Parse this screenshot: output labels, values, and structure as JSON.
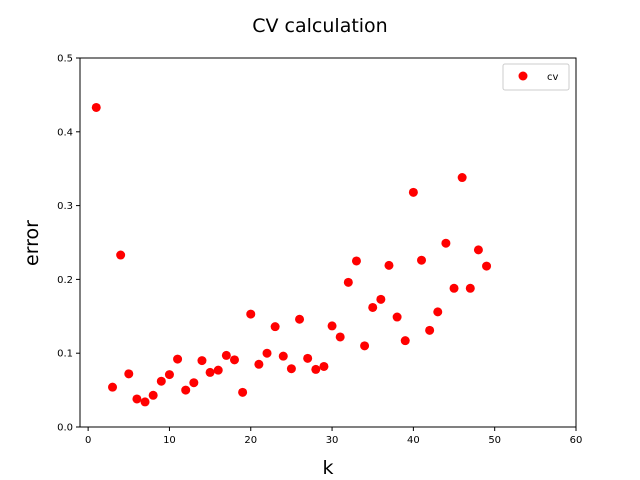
{
  "chart_data": {
    "type": "scatter",
    "title": "CV calculation",
    "xlabel": "k",
    "ylabel": "error",
    "xlim": [
      -1,
      60
    ],
    "ylim": [
      0.0,
      0.5
    ],
    "xticks": [
      0,
      10,
      20,
      30,
      40,
      50,
      60
    ],
    "yticks": [
      0.0,
      0.1,
      0.2,
      0.3,
      0.4,
      0.5
    ],
    "xtick_labels": [
      "0",
      "10",
      "20",
      "30",
      "40",
      "50",
      "60"
    ],
    "ytick_labels": [
      "0.0",
      "0.1",
      "0.2",
      "0.3",
      "0.4",
      "0.5"
    ],
    "grid": false,
    "legend_position": "top-right",
    "series": [
      {
        "name": "cv",
        "color": "#ff0000",
        "marker": "circle",
        "x": [
          1,
          3,
          4,
          5,
          6,
          7,
          8,
          9,
          10,
          11,
          12,
          13,
          14,
          15,
          16,
          17,
          18,
          19,
          20,
          21,
          22,
          23,
          24,
          25,
          26,
          27,
          28,
          29,
          30,
          31,
          32,
          33,
          34,
          35,
          36,
          37,
          38,
          39,
          40,
          41,
          42,
          43,
          44,
          45,
          46,
          47,
          48,
          49
        ],
        "y": [
          0.433,
          0.054,
          0.233,
          0.072,
          0.038,
          0.034,
          0.043,
          0.062,
          0.071,
          0.092,
          0.05,
          0.06,
          0.09,
          0.074,
          0.077,
          0.097,
          0.091,
          0.047,
          0.153,
          0.085,
          0.1,
          0.136,
          0.096,
          0.079,
          0.146,
          0.093,
          0.078,
          0.082,
          0.137,
          0.122,
          0.196,
          0.225,
          0.11,
          0.162,
          0.173,
          0.219,
          0.149,
          0.117,
          0.318,
          0.226,
          0.131,
          0.156,
          0.249,
          0.188,
          0.338,
          0.188,
          0.24,
          0.218
        ]
      }
    ]
  }
}
